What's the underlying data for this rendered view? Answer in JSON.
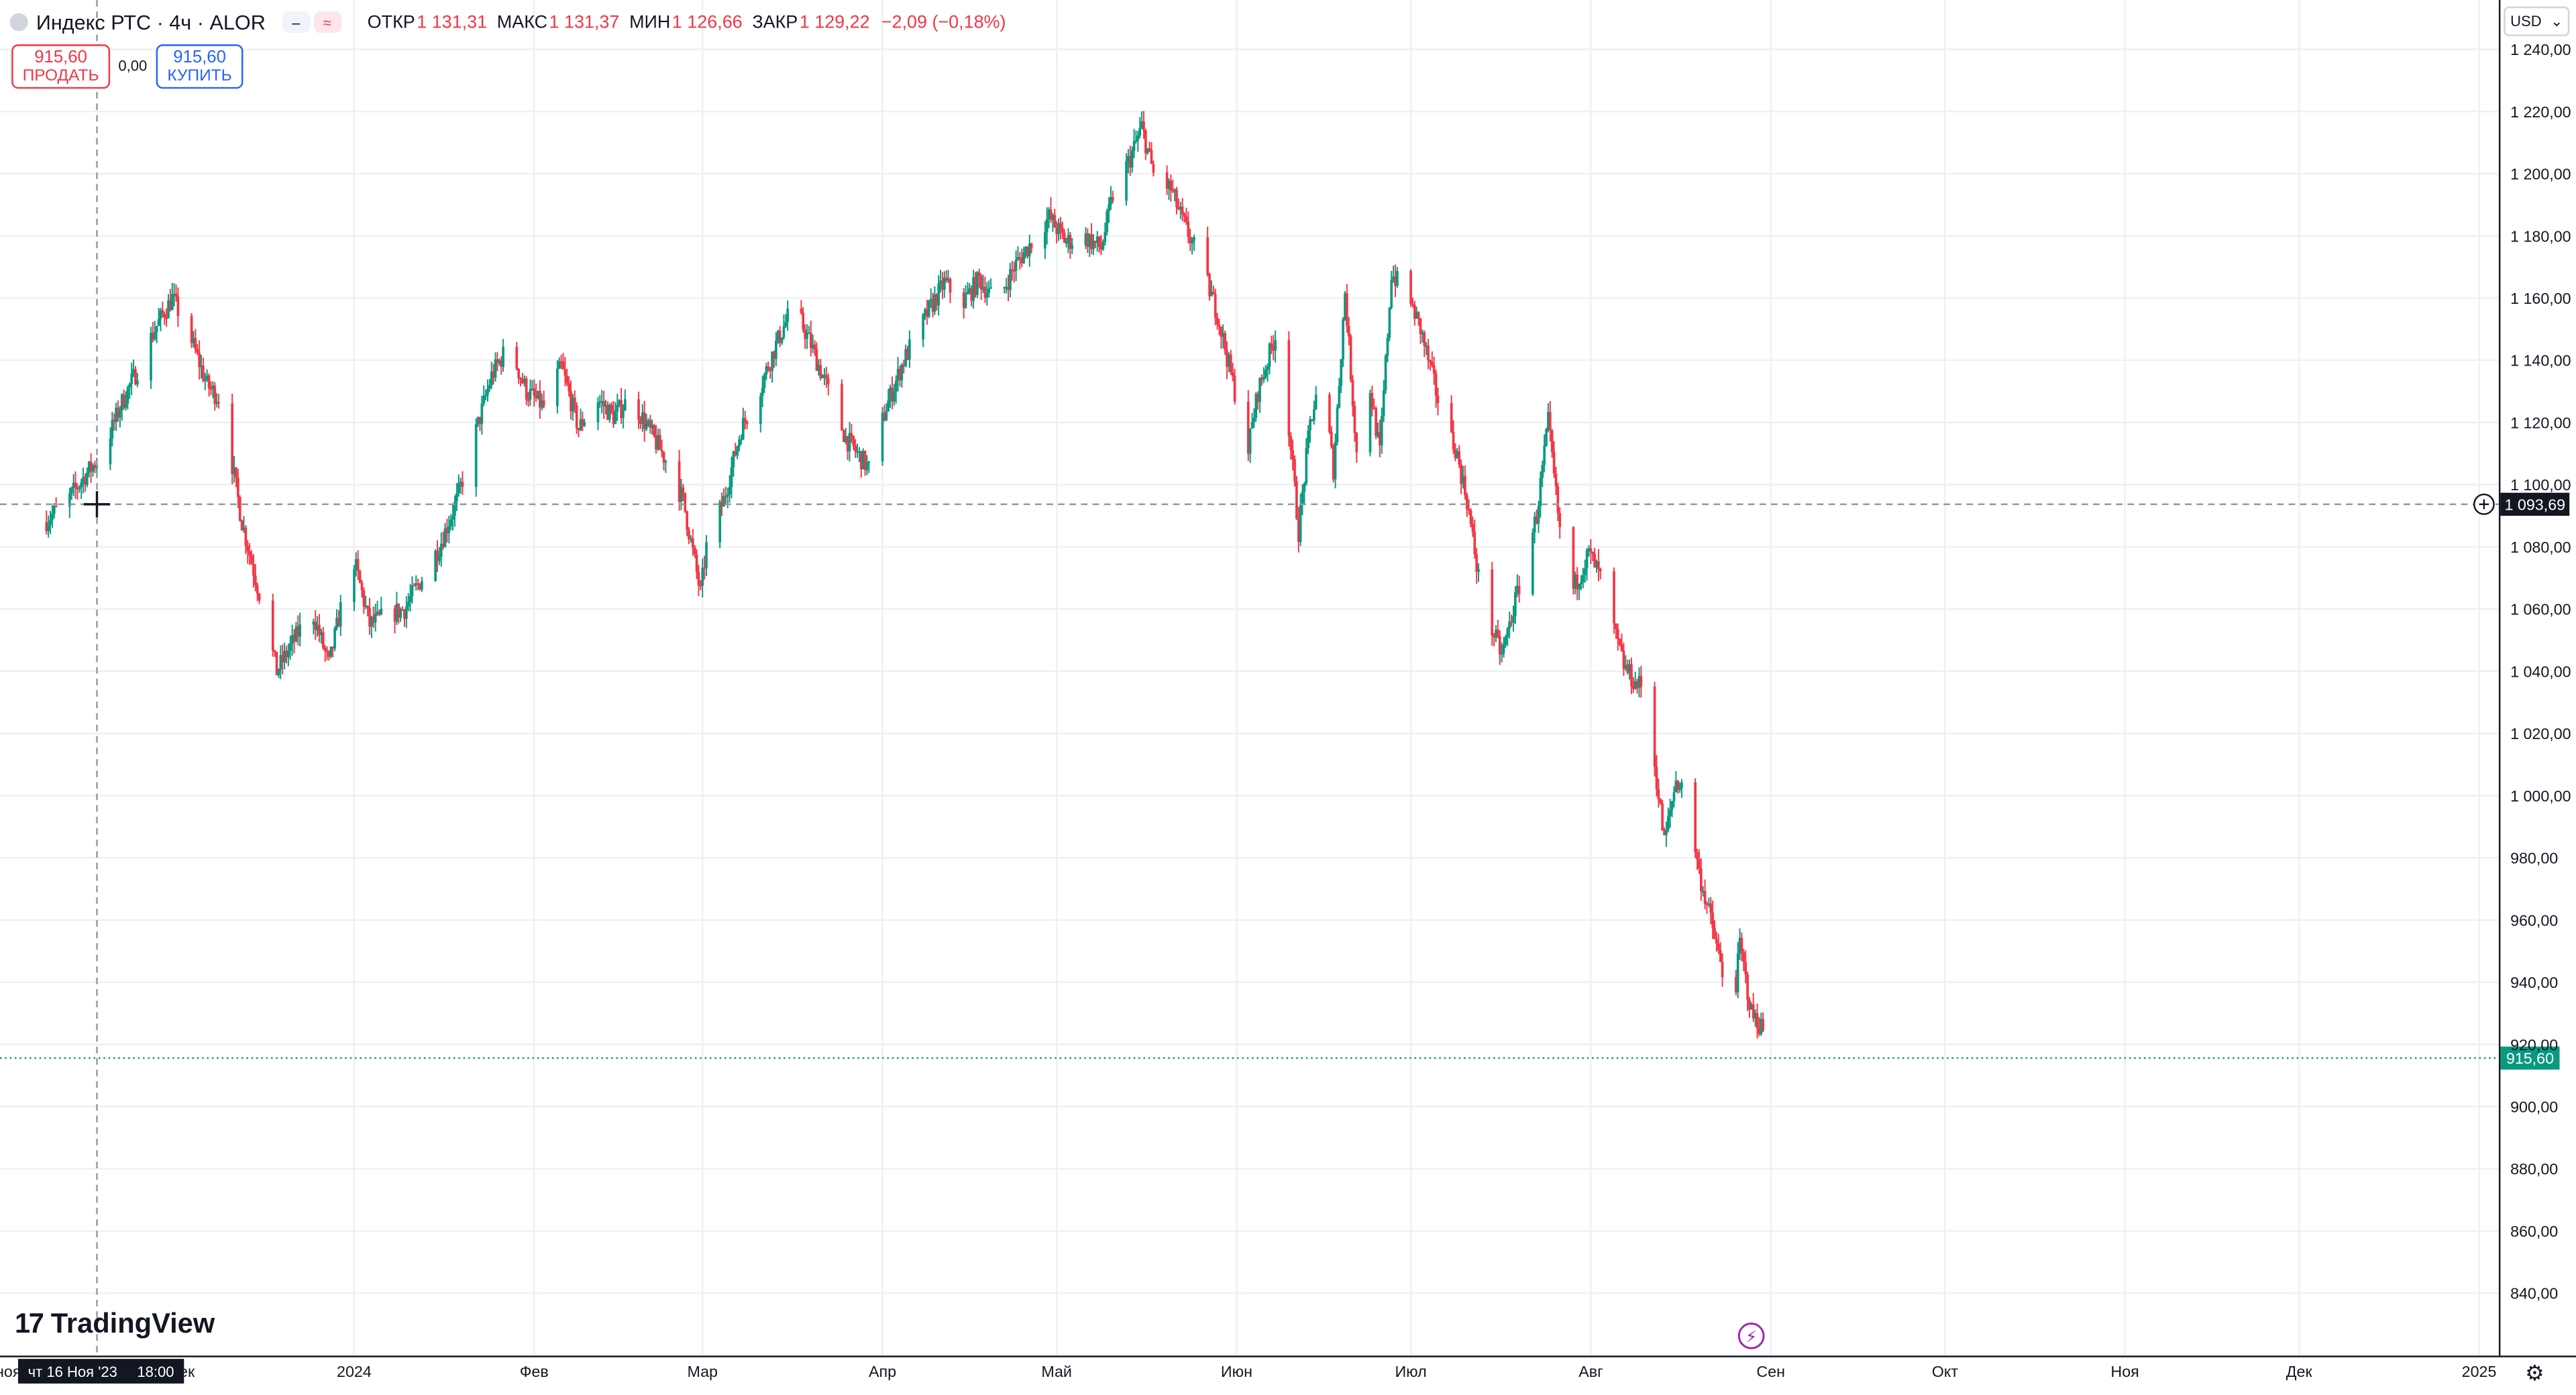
{
  "header": {
    "symbol": "Индекс РТС · 4ч · ALOR",
    "ohlc": {
      "open_label": "ОТКР",
      "open_value": "1 131,31",
      "high_label": "МАКС",
      "high_value": "1 131,37",
      "low_label": "МИН",
      "low_value": "1 126,66",
      "close_label": "ЗАКР",
      "close_value": "1 129,22",
      "change": "−2,09 (−0,18%)"
    },
    "pill_left_icon": "minus-icon",
    "pill_right_icon": "wave-icon"
  },
  "trade": {
    "sell_price": "915,60",
    "sell_label": "ПРОДАТЬ",
    "spread": "0,00",
    "buy_price": "915,60",
    "buy_label": "КУПИТЬ"
  },
  "currency": {
    "selected": "USD"
  },
  "logo": {
    "text": "TradingView"
  },
  "crosshair": {
    "date": "чт 16 Ноя '23",
    "time": "18:00",
    "price_label": "1 093,69"
  },
  "last_price_label": "915,60",
  "colors": {
    "up": "#089981",
    "down": "#f23645",
    "grid": "#eef0f4",
    "last_price": "#089981",
    "crosshair": "#9598a1",
    "event": "#9c27b0"
  },
  "chart_data": {
    "type": "candlestick",
    "x_ticks": [
      "2024",
      "Фев",
      "Мар",
      "Апр",
      "Май",
      "Июн",
      "Июл",
      "Авг",
      "Сен",
      "Окт",
      "Ноя",
      "Дек",
      "2025"
    ],
    "x_tick_dates": [
      "2024-01-01",
      "2024-02-01",
      "2024-03-01",
      "2024-04-01",
      "2024-05-01",
      "2024-06-01",
      "2024-07-01",
      "2024-08-01",
      "2024-09-01",
      "2024-10-01",
      "2024-11-01",
      "2024-12-01",
      "2025-01-01"
    ],
    "x_edge_labels": [
      "ноя",
      "дек"
    ],
    "y_ticks": [
      "1 240,00",
      "1 220,00",
      "1 200,00",
      "1 180,00",
      "1 160,00",
      "1 140,00",
      "1 120,00",
      "1 100,00",
      "1 080,00",
      "1 060,00",
      "1 040,00",
      "1 020,00",
      "1 000,00",
      "980,00",
      "960,00",
      "940,00",
      "920,00",
      "900,00",
      "880,00",
      "860,00",
      "840,00"
    ],
    "y_tick_values": [
      1240,
      1220,
      1200,
      1180,
      1160,
      1140,
      1120,
      1100,
      1080,
      1060,
      1040,
      1020,
      1000,
      980,
      960,
      940,
      920,
      900,
      880,
      860,
      840
    ],
    "crosshair_price": 1093.69,
    "last_price": 915.6,
    "close_path": [
      [
        "2023-11-09",
        1088
      ],
      [
        "2023-11-13",
        1095
      ],
      [
        "2023-11-16",
        1103
      ],
      [
        "2023-11-19",
        1110
      ],
      [
        "2023-11-22",
        1125
      ],
      [
        "2023-11-25",
        1137
      ],
      [
        "2023-11-28",
        1150
      ],
      [
        "2023-12-01",
        1160
      ],
      [
        "2023-12-04",
        1148
      ],
      [
        "2023-12-07",
        1132
      ],
      [
        "2023-12-09",
        1128
      ],
      [
        "2023-12-11",
        1110
      ],
      [
        "2023-12-13",
        1088
      ],
      [
        "2023-12-16",
        1065
      ],
      [
        "2023-12-19",
        1040
      ],
      [
        "2023-12-22",
        1050
      ],
      [
        "2023-12-25",
        1060
      ],
      [
        "2023-12-28",
        1042
      ],
      [
        "2024-01-01",
        1078
      ],
      [
        "2024-01-04",
        1055
      ],
      [
        "2024-01-07",
        1058
      ],
      [
        "2024-01-10",
        1060
      ],
      [
        "2024-01-13",
        1070
      ],
      [
        "2024-01-16",
        1080
      ],
      [
        "2024-01-19",
        1095
      ],
      [
        "2024-01-22",
        1115
      ],
      [
        "2024-01-25",
        1135
      ],
      [
        "2024-01-28",
        1145
      ],
      [
        "2024-01-31",
        1130
      ],
      [
        "2024-02-03",
        1125
      ],
      [
        "2024-02-06",
        1138
      ],
      [
        "2024-02-09",
        1118
      ],
      [
        "2024-02-12",
        1128
      ],
      [
        "2024-02-15",
        1122
      ],
      [
        "2024-02-18",
        1128
      ],
      [
        "2024-02-21",
        1118
      ],
      [
        "2024-02-24",
        1108
      ],
      [
        "2024-02-27",
        1095
      ],
      [
        "2024-03-01",
        1065
      ],
      [
        "2024-03-02",
        1080
      ],
      [
        "2024-03-05",
        1095
      ],
      [
        "2024-03-08",
        1118
      ],
      [
        "2024-03-11",
        1130
      ],
      [
        "2024-03-14",
        1145
      ],
      [
        "2024-03-17",
        1158
      ],
      [
        "2024-03-20",
        1145
      ],
      [
        "2024-03-23",
        1130
      ],
      [
        "2024-03-26",
        1115
      ],
      [
        "2024-03-30",
        1105
      ],
      [
        "2024-04-02",
        1125
      ],
      [
        "2024-04-05",
        1140
      ],
      [
        "2024-04-09",
        1155
      ],
      [
        "2024-04-12",
        1165
      ],
      [
        "2024-04-15",
        1158
      ],
      [
        "2024-04-18",
        1166
      ],
      [
        "2024-04-21",
        1158
      ],
      [
        "2024-04-24",
        1170
      ],
      [
        "2024-04-27",
        1178
      ],
      [
        "2024-04-30",
        1186
      ],
      [
        "2024-05-03",
        1178
      ],
      [
        "2024-05-06",
        1180
      ],
      [
        "2024-05-09",
        1176
      ],
      [
        "2024-05-11",
        1193
      ],
      [
        "2024-05-14",
        1205
      ],
      [
        "2024-05-16",
        1215
      ],
      [
        "2024-05-18",
        1200
      ],
      [
        "2024-05-21",
        1195
      ],
      [
        "2024-05-23",
        1185
      ],
      [
        "2024-05-26",
        1172
      ],
      [
        "2024-05-29",
        1155
      ],
      [
        "2024-06-01",
        1130
      ],
      [
        "2024-06-03",
        1108
      ],
      [
        "2024-06-05",
        1130
      ],
      [
        "2024-06-08",
        1148
      ],
      [
        "2024-06-10",
        1125
      ],
      [
        "2024-06-12",
        1085
      ],
      [
        "2024-06-14",
        1120
      ],
      [
        "2024-06-16",
        1135
      ],
      [
        "2024-06-18",
        1105
      ],
      [
        "2024-06-20",
        1162
      ],
      [
        "2024-06-22",
        1110
      ],
      [
        "2024-06-24",
        1135
      ],
      [
        "2024-06-26",
        1110
      ],
      [
        "2024-06-28",
        1168
      ],
      [
        "2024-07-01",
        1160
      ],
      [
        "2024-07-03",
        1150
      ],
      [
        "2024-07-05",
        1135
      ],
      [
        "2024-07-07",
        1120
      ],
      [
        "2024-07-09",
        1112
      ],
      [
        "2024-07-11",
        1095
      ],
      [
        "2024-07-13",
        1070
      ],
      [
        "2024-07-15",
        1055
      ],
      [
        "2024-07-17",
        1045
      ],
      [
        "2024-07-19",
        1060
      ],
      [
        "2024-07-21",
        1075
      ],
      [
        "2024-07-23",
        1090
      ],
      [
        "2024-07-25",
        1120
      ],
      [
        "2024-07-27",
        1085
      ],
      [
        "2024-07-29",
        1065
      ],
      [
        "2024-08-01",
        1078
      ],
      [
        "2024-08-03",
        1070
      ],
      [
        "2024-08-05",
        1055
      ],
      [
        "2024-08-07",
        1042
      ],
      [
        "2024-08-09",
        1036
      ],
      [
        "2024-08-11",
        1035
      ],
      [
        "2024-08-12",
        1015
      ],
      [
        "2024-08-14",
        985
      ],
      [
        "2024-08-16",
        1005
      ],
      [
        "2024-08-18",
        1000
      ],
      [
        "2024-08-20",
        975
      ],
      [
        "2024-08-22",
        960
      ],
      [
        "2024-08-24",
        943
      ],
      [
        "2024-08-25",
        915
      ],
      [
        "2024-08-27",
        952
      ],
      [
        "2024-08-29",
        930
      ],
      [
        "2024-08-31",
        925
      ],
      [
        "2024-09-01",
        915.6
      ]
    ]
  }
}
